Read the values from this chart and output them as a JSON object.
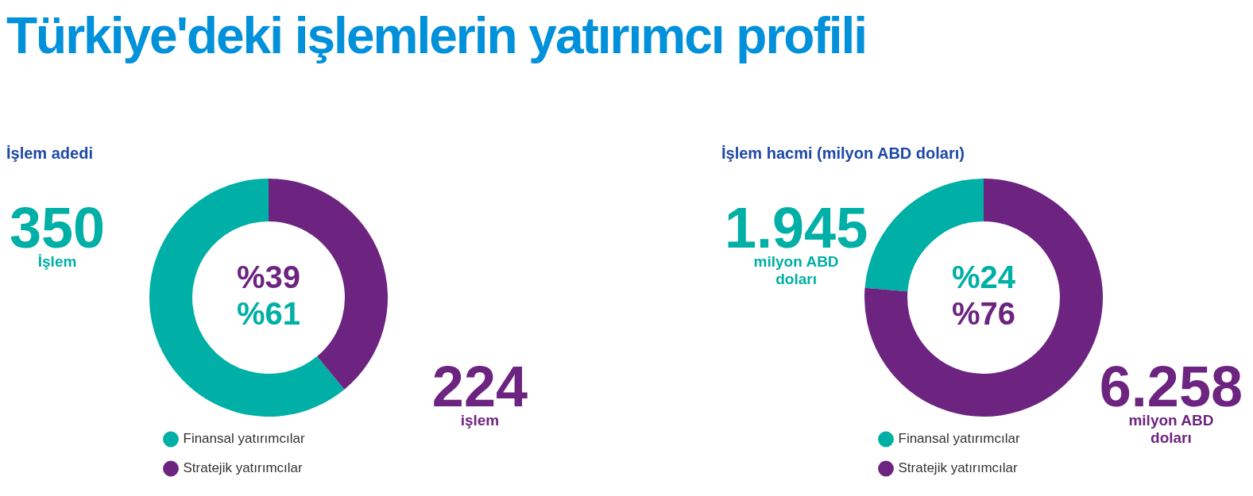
{
  "chart_data": [
    {
      "type": "donut",
      "title": "Türkiye'deki işlemlerin yatırımcı profili",
      "subtitle": "İşlem adedi",
      "categories": [
        "Finansal yatırımcılar",
        "Stratejik yatırımcılar"
      ],
      "values": [
        350,
        224
      ],
      "colors": [
        "#00afa5",
        "#6c2480"
      ],
      "value_labels": [
        "350",
        "224"
      ],
      "legend": "bottom left",
      "annotations": [
        {
          "text": "İşlem",
          "x": "Finansal yatırımcılar"
        },
        {
          "text": "işlem",
          "x": "Stratejik yatırımcılar"
        },
        {
          "text": "%39",
          "x": "Stratejik yatırımcılar"
        },
        {
          "text": "%61",
          "x": "Finansal yatırımcılar"
        }
      ]
    },
    {
      "type": "donut",
      "title": "İşlem hacmi (milyon ABD doları)",
      "categories": [
        "Finansal yatırımcılar",
        "Stratejik yatırımcılar"
      ],
      "values": [
        1945,
        6258
      ],
      "colors": [
        "#00afa5",
        "#6c2480"
      ],
      "value_labels": [
        "1.945",
        "6.258"
      ],
      "legend": "bottom left",
      "annotations": [
        {
          "text": "milyon ABD doları",
          "x": "Finansal yatırımcılar"
        },
        {
          "text": "milyon ABD doları",
          "x": "Stratejik yatırımcılar"
        },
        {
          "text": "%24",
          "x": "Finansal yatırımcılar"
        },
        {
          "text": "%76",
          "x": "Stratejik yatırımcılar"
        }
      ]
    }
  ]
}
